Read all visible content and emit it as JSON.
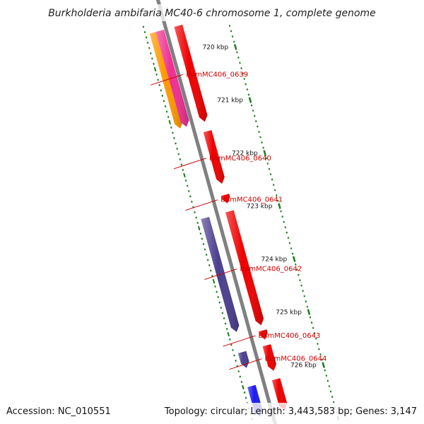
{
  "title": "Burkholderia ambifaria MC40-6 chromosome 1, complete genome",
  "footer": {
    "accession": "Accession: NC_010551",
    "summary": "Topology: circular; Length: 3,443,583 bp; Genes: 3,147"
  },
  "colors": {
    "backbone": "#808080",
    "tick": "#1f7a1f",
    "gene_red": "#ee0000",
    "gene_purple": "#4b3f8f",
    "gene_orange": "#ff9900",
    "gene_magenta": "#ee2f92",
    "gene_blue": "#1a1aee",
    "label": "#cc0000"
  },
  "ticks": [
    {
      "kbp": 720,
      "label": "720 kbp"
    },
    {
      "kbp": 721,
      "label": "721 kbp"
    },
    {
      "kbp": 722,
      "label": "722 kbp"
    },
    {
      "kbp": 723,
      "label": "723 kbp"
    },
    {
      "kbp": 724,
      "label": "724 kbp"
    },
    {
      "kbp": 725,
      "label": "725 kbp"
    },
    {
      "kbp": 726,
      "label": "726 kbp"
    }
  ],
  "genes": [
    {
      "label": "BamMC406_0639",
      "start_kbp": 719.35,
      "end_kbp": 721.16,
      "lane": 1,
      "color": "#ff9900",
      "labeled": true
    },
    {
      "label": "",
      "start_kbp": 719.35,
      "end_kbp": 721.16,
      "lane": 0.5,
      "color": "#ee2f92",
      "labeled": false
    },
    {
      "label": "",
      "start_kbp": 719.35,
      "end_kbp": 721.16,
      "lane": -1,
      "color": "#ee0000",
      "labeled": false
    },
    {
      "label": "BamMC406_0640",
      "start_kbp": 721.34,
      "end_kbp": 722.33,
      "lane": -1,
      "color": "#ee0000",
      "labeled": true
    },
    {
      "label": "BamMC406_0641",
      "start_kbp": 722.54,
      "end_kbp": 722.7,
      "lane": -1,
      "color": "#ee0000",
      "labeled": true
    },
    {
      "label": "BamMC406_0642",
      "start_kbp": 722.85,
      "end_kbp": 725.0,
      "lane": -1,
      "color": "#ee0000",
      "labeled": true
    },
    {
      "label": "",
      "start_kbp": 722.85,
      "end_kbp": 725.0,
      "lane": 1,
      "color": "#4b3f8f",
      "labeled": false
    },
    {
      "label": "BamMC406_0643",
      "start_kbp": 725.1,
      "end_kbp": 725.27,
      "lane": -1,
      "color": "#ee0000",
      "labeled": true
    },
    {
      "label": "BamMC406_0644",
      "start_kbp": 725.38,
      "end_kbp": 725.86,
      "lane": -1,
      "color": "#ee0000",
      "labeled": true
    },
    {
      "label": "",
      "start_kbp": 725.38,
      "end_kbp": 725.68,
      "lane": 1,
      "color": "#4b3f8f",
      "labeled": false
    },
    {
      "label": "",
      "start_kbp": 726.02,
      "end_kbp": 726.6,
      "lane": -1,
      "color": "#ee0000",
      "labeled": false
    },
    {
      "label": "",
      "start_kbp": 726.02,
      "end_kbp": 726.6,
      "lane": 1,
      "color": "#1a1aee",
      "labeled": false
    }
  ]
}
